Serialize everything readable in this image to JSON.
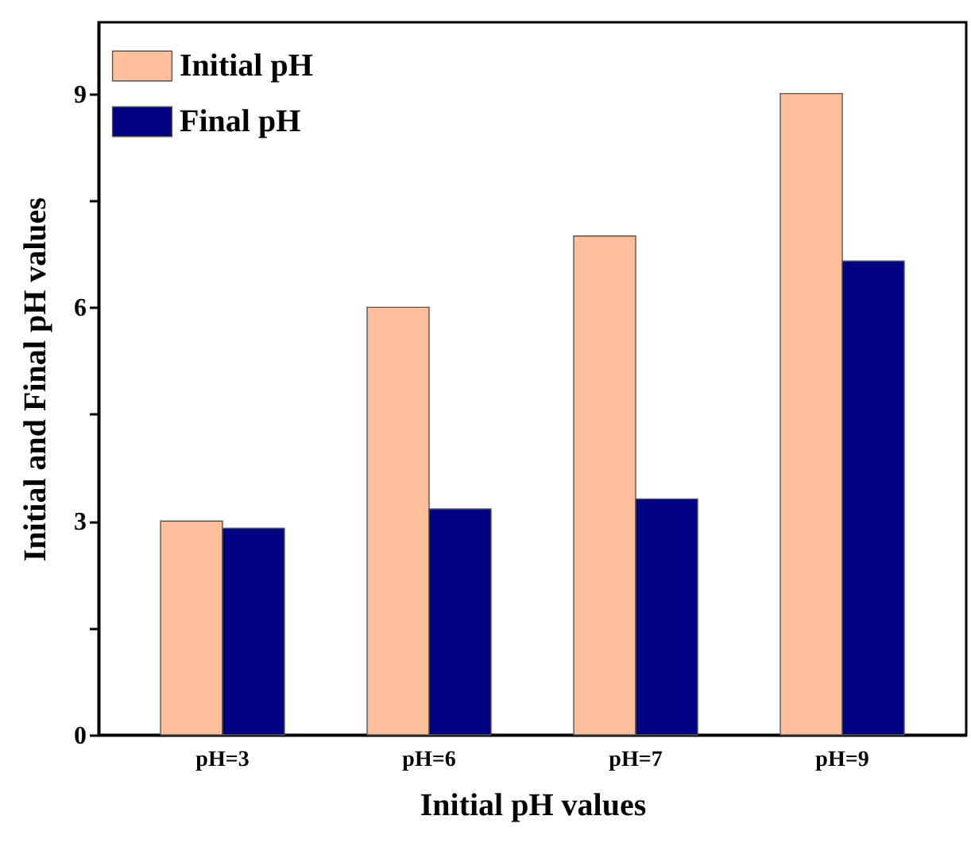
{
  "chart_data": {
    "type": "bar",
    "xlabel": "Initial pH values",
    "ylabel": "Initial and Final pH values",
    "categories": [
      "pH=3",
      "pH=6",
      "pH=7",
      "pH=9"
    ],
    "series": [
      {
        "name": "Initial pH",
        "color": "#ffbf9a",
        "values": [
          3,
          6,
          7,
          9
        ]
      },
      {
        "name": "Final pH",
        "color": "#000080",
        "values": [
          2.9,
          3.17,
          3.31,
          6.65
        ]
      }
    ],
    "ylim": [
      0,
      10
    ],
    "yticks": [
      0,
      {
        "value": 1.5,
        "label": null
      },
      3,
      {
        "value": 4.5,
        "label": null
      },
      6,
      {
        "value": 7.5,
        "label": null
      },
      9
    ],
    "grid": false,
    "legend": "top left"
  }
}
